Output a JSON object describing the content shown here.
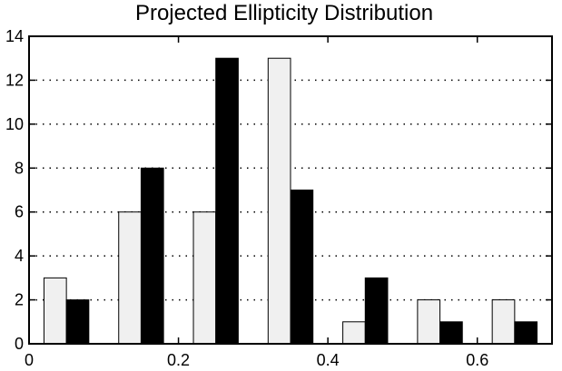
{
  "chart_data": {
    "type": "bar",
    "title": "Projected Ellipticity Distribution",
    "xlabel": "",
    "ylabel": "",
    "xlim": [
      0,
      0.7
    ],
    "ylim": [
      0,
      14
    ],
    "x_ticks": [
      0,
      0.2,
      0.4,
      0.6
    ],
    "x_tick_labels": [
      "0",
      "0.2",
      "0.4",
      "0.6"
    ],
    "y_ticks": [
      0,
      2,
      4,
      6,
      8,
      10,
      12,
      14
    ],
    "y_tick_labels": [
      "0",
      "2",
      "4",
      "6",
      "8",
      "10",
      "12",
      "14"
    ],
    "grid": "horizontal dotted",
    "bin_centers": [
      0.05,
      0.15,
      0.25,
      0.35,
      0.45,
      0.55,
      0.65
    ],
    "series": [
      {
        "color": "#f0f0f0",
        "values": [
          3,
          6,
          6,
          13,
          1,
          2,
          2
        ]
      },
      {
        "color": "#000000",
        "values": [
          2,
          8,
          13,
          7,
          3,
          1,
          1
        ]
      }
    ]
  }
}
